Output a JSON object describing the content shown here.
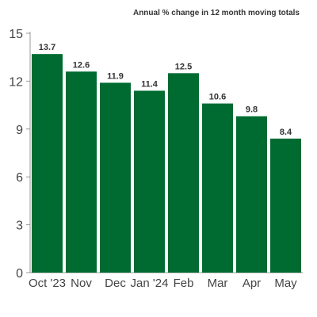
{
  "chart_data": {
    "type": "bar",
    "subtitle": "Annual % change in 12 month moving totals",
    "categories": [
      "Oct '23",
      "Nov",
      "Dec",
      "Jan '24",
      "Feb",
      "Mar",
      "Apr",
      "May"
    ],
    "values": [
      13.7,
      12.6,
      11.9,
      11.4,
      12.5,
      10.6,
      9.8,
      8.4
    ],
    "data_labels": [
      "13.7",
      "12.6",
      "11.9",
      "11.4",
      "12.5",
      "10.6",
      "9.8",
      "8.4"
    ],
    "ylim": [
      0,
      15
    ],
    "yticks": [
      0,
      3,
      6,
      9,
      12,
      15
    ],
    "ytick_labels": [
      "0",
      "3",
      "6",
      "9",
      "12",
      "15"
    ],
    "grid": false,
    "colors": {
      "bar": "#006b30",
      "axis": "#9a9a9a"
    }
  }
}
